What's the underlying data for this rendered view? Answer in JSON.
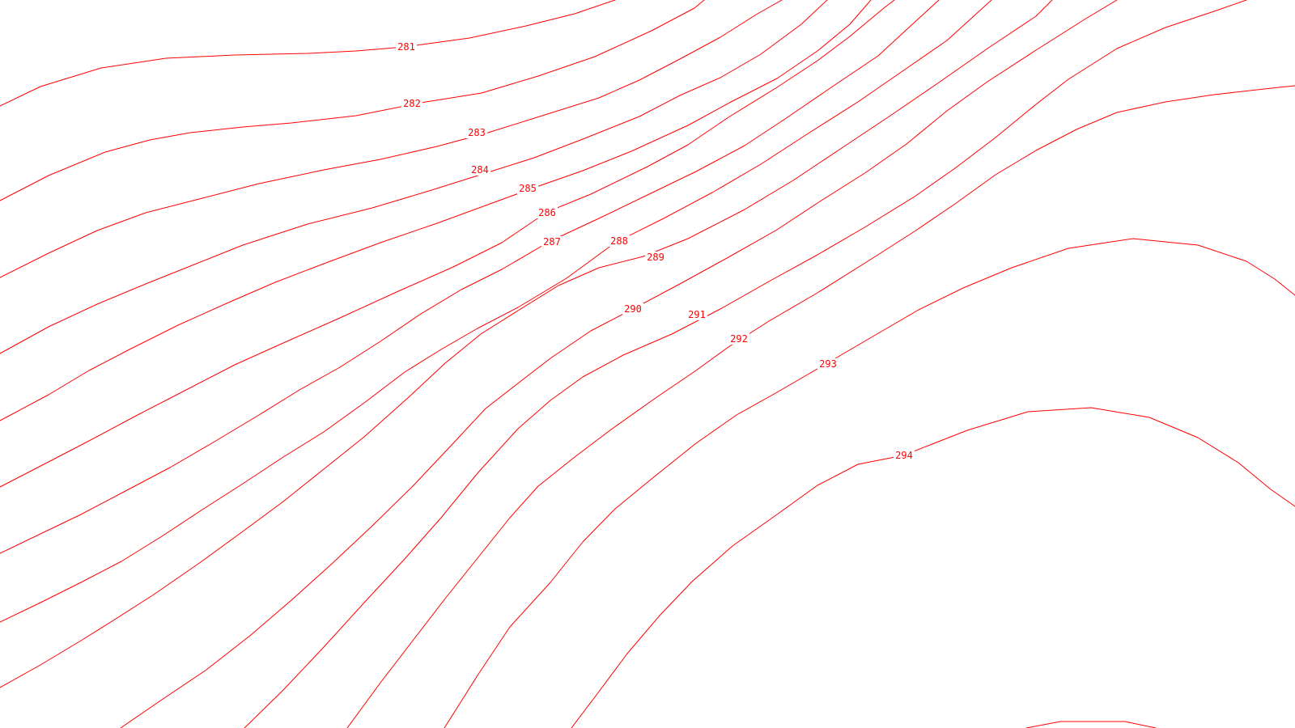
{
  "map": {
    "line_color": "#ff0000",
    "background": "#ffffff",
    "contours": [
      {
        "id": "c281",
        "label": "281"
      },
      {
        "id": "c282",
        "label": "282"
      },
      {
        "id": "c283",
        "label": "283"
      },
      {
        "id": "c284",
        "label": "284"
      },
      {
        "id": "c285",
        "label": "285"
      },
      {
        "id": "c286",
        "label": "286"
      },
      {
        "id": "c287",
        "label": "287"
      },
      {
        "id": "c288",
        "label": "288"
      },
      {
        "id": "c289",
        "label": "289"
      },
      {
        "id": "c290",
        "label": "290"
      },
      {
        "id": "c291",
        "label": "291"
      },
      {
        "id": "c292",
        "label": "292"
      },
      {
        "id": "c293",
        "label": "293"
      },
      {
        "id": "c294",
        "label": "294"
      },
      {
        "id": "c294b",
        "label": ""
      },
      {
        "id": "c295",
        "label": ""
      }
    ]
  }
}
